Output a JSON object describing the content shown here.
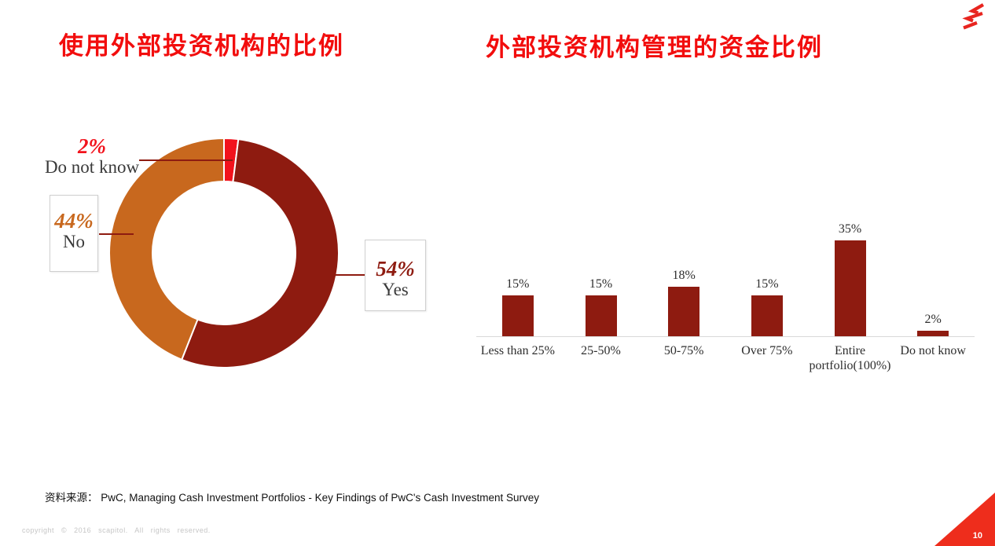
{
  "slide": {
    "left_title": "使用外部投资机构的比例",
    "right_title": "外部投资机构管理的资金比例",
    "source_line": "资料来源：  PwC, Managing Cash Investment Portfolios - Key Findings of PwC's Cash Investment Survey",
    "copyright": "copyright  ©  2016  scapitol.  All  rights  reserved.",
    "page_number": "10"
  },
  "colors": {
    "title_red": "#F20D0D",
    "dark_red": "#8E1B10",
    "orange": "#C8681E",
    "bright_red": "#F2121C",
    "label_gray": "#3A3A3A",
    "axis_gray": "#D9D9D9",
    "corner_red": "#EE2D1C"
  },
  "chart_data": [
    {
      "type": "pie",
      "subtype": "donut",
      "title": "使用外部投资机构的比例",
      "labels": [
        "Do not know",
        "Yes",
        "No"
      ],
      "values": [
        2,
        54,
        44
      ],
      "colors": [
        "#F2121C",
        "#8E1B10",
        "#C8681E"
      ],
      "start_angle_deg": 0,
      "direction": "clockwise",
      "callouts": [
        {
          "value_label": "2%",
          "name": "Do not know",
          "boxed": false
        },
        {
          "value_label": "44%",
          "name": "No",
          "boxed": true
        },
        {
          "value_label": "54%",
          "name": "Yes",
          "boxed": true
        }
      ]
    },
    {
      "type": "bar",
      "title": "外部投资机构管理的资金比例",
      "categories": [
        "Less than 25%",
        "25-50%",
        "50-75%",
        "Over 75%",
        "Entire portfolio(100%)",
        "Do not know"
      ],
      "values": [
        15,
        15,
        18,
        15,
        35,
        2
      ],
      "value_labels": [
        "15%",
        "15%",
        "18%",
        "15%",
        "35%",
        "2%"
      ],
      "bar_color": "#8E1B10",
      "ylim": [
        0,
        40
      ],
      "gridlines": false,
      "legend": "none"
    }
  ]
}
